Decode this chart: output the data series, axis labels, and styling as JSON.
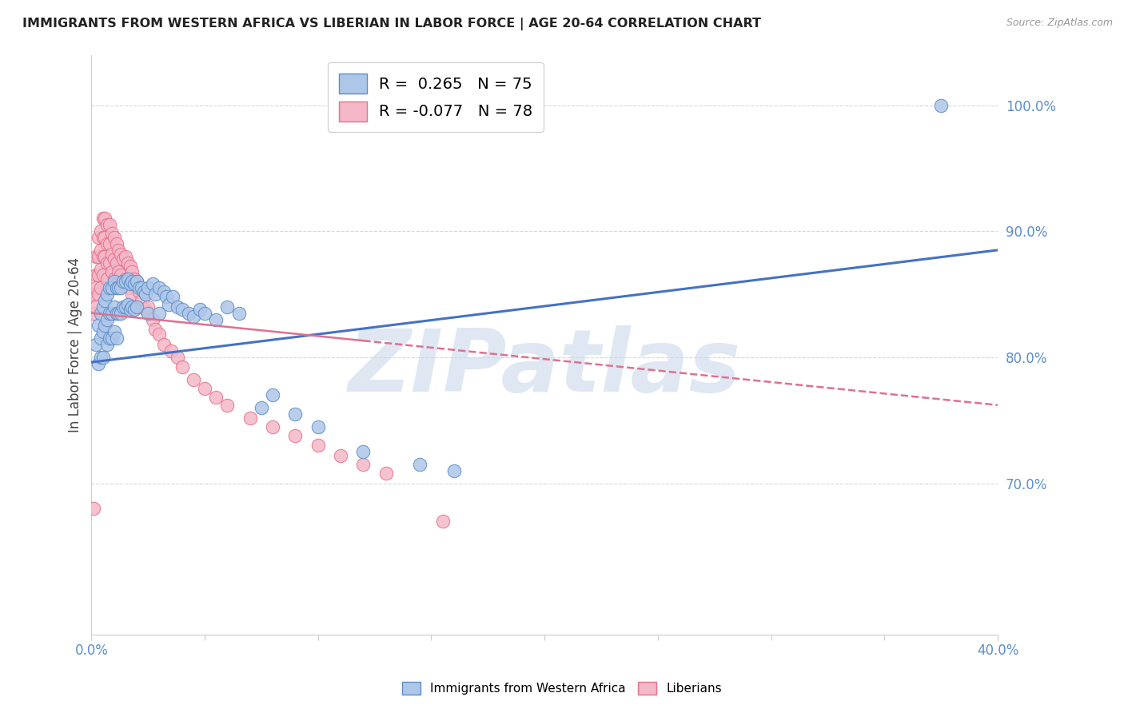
{
  "title": "IMMIGRANTS FROM WESTERN AFRICA VS LIBERIAN IN LABOR FORCE | AGE 20-64 CORRELATION CHART",
  "source": "Source: ZipAtlas.com",
  "ylabel": "In Labor Force | Age 20-64",
  "xlim": [
    0.0,
    0.4
  ],
  "ylim": [
    0.58,
    1.04
  ],
  "xtick_positions": [
    0.0,
    0.05,
    0.1,
    0.15,
    0.2,
    0.25,
    0.3,
    0.35,
    0.4
  ],
  "xtick_labels": [
    "0.0%",
    "",
    "",
    "",
    "",
    "",
    "",
    "",
    "40.0%"
  ],
  "ytick_positions": [
    0.7,
    0.8,
    0.9,
    1.0
  ],
  "ytick_labels": [
    "70.0%",
    "80.0%",
    "90.0%",
    "100.0%"
  ],
  "blue_color": "#aec6e8",
  "pink_color": "#f4b8c8",
  "blue_edge_color": "#5b8ec9",
  "pink_edge_color": "#e8708a",
  "blue_line_color": "#4472c4",
  "pink_line_color": "#e07090",
  "watermark": "ZIPatlas",
  "watermark_color": "#c8d8ea",
  "legend_blue": "R =  0.265   N = 75",
  "legend_pink": "R = -0.077   N = 78",
  "blue_trend_x0": 0.0,
  "blue_trend_y0": 0.796,
  "blue_trend_x1": 0.4,
  "blue_trend_y1": 0.885,
  "pink_trend_x0": 0.0,
  "pink_trend_y0": 0.835,
  "pink_trend_x1": 0.4,
  "pink_trend_y1": 0.762,
  "blue_scatter_x": [
    0.002,
    0.003,
    0.003,
    0.004,
    0.004,
    0.004,
    0.005,
    0.005,
    0.005,
    0.006,
    0.006,
    0.007,
    0.007,
    0.007,
    0.008,
    0.008,
    0.008,
    0.009,
    0.009,
    0.009,
    0.01,
    0.01,
    0.01,
    0.011,
    0.011,
    0.011,
    0.012,
    0.012,
    0.013,
    0.013,
    0.014,
    0.014,
    0.015,
    0.015,
    0.016,
    0.016,
    0.017,
    0.017,
    0.018,
    0.018,
    0.019,
    0.019,
    0.02,
    0.02,
    0.021,
    0.022,
    0.023,
    0.024,
    0.025,
    0.025,
    0.027,
    0.028,
    0.03,
    0.03,
    0.032,
    0.033,
    0.034,
    0.036,
    0.038,
    0.04,
    0.043,
    0.045,
    0.048,
    0.05,
    0.055,
    0.06,
    0.065,
    0.075,
    0.08,
    0.09,
    0.1,
    0.12,
    0.145,
    0.16,
    0.375
  ],
  "blue_scatter_y": [
    0.81,
    0.825,
    0.795,
    0.835,
    0.815,
    0.8,
    0.84,
    0.82,
    0.8,
    0.845,
    0.825,
    0.85,
    0.83,
    0.81,
    0.855,
    0.835,
    0.815,
    0.855,
    0.835,
    0.815,
    0.86,
    0.84,
    0.82,
    0.855,
    0.835,
    0.815,
    0.855,
    0.835,
    0.855,
    0.835,
    0.86,
    0.84,
    0.86,
    0.84,
    0.862,
    0.842,
    0.858,
    0.838,
    0.86,
    0.84,
    0.858,
    0.838,
    0.86,
    0.84,
    0.855,
    0.855,
    0.852,
    0.85,
    0.855,
    0.835,
    0.858,
    0.85,
    0.855,
    0.835,
    0.852,
    0.848,
    0.842,
    0.848,
    0.84,
    0.838,
    0.835,
    0.832,
    0.838,
    0.835,
    0.83,
    0.84,
    0.835,
    0.76,
    0.77,
    0.755,
    0.745,
    0.725,
    0.715,
    0.71,
    1.0
  ],
  "pink_scatter_x": [
    0.001,
    0.001,
    0.001,
    0.002,
    0.002,
    0.002,
    0.002,
    0.003,
    0.003,
    0.003,
    0.003,
    0.004,
    0.004,
    0.004,
    0.004,
    0.005,
    0.005,
    0.005,
    0.005,
    0.006,
    0.006,
    0.006,
    0.007,
    0.007,
    0.007,
    0.007,
    0.008,
    0.008,
    0.008,
    0.009,
    0.009,
    0.009,
    0.01,
    0.01,
    0.01,
    0.011,
    0.011,
    0.011,
    0.012,
    0.012,
    0.013,
    0.013,
    0.014,
    0.014,
    0.015,
    0.015,
    0.016,
    0.016,
    0.017,
    0.017,
    0.018,
    0.018,
    0.019,
    0.02,
    0.02,
    0.021,
    0.022,
    0.024,
    0.025,
    0.027,
    0.028,
    0.03,
    0.032,
    0.035,
    0.038,
    0.04,
    0.045,
    0.05,
    0.055,
    0.06,
    0.07,
    0.08,
    0.09,
    0.1,
    0.11,
    0.12,
    0.13,
    0.155
  ],
  "pink_scatter_y": [
    0.85,
    0.835,
    0.68,
    0.88,
    0.865,
    0.855,
    0.84,
    0.895,
    0.88,
    0.865,
    0.85,
    0.9,
    0.885,
    0.87,
    0.855,
    0.91,
    0.895,
    0.88,
    0.865,
    0.91,
    0.895,
    0.88,
    0.905,
    0.89,
    0.875,
    0.862,
    0.905,
    0.89,
    0.875,
    0.898,
    0.882,
    0.868,
    0.895,
    0.878,
    0.862,
    0.89,
    0.875,
    0.858,
    0.885,
    0.868,
    0.882,
    0.865,
    0.878,
    0.86,
    0.88,
    0.862,
    0.875,
    0.858,
    0.872,
    0.855,
    0.868,
    0.85,
    0.862,
    0.86,
    0.84,
    0.852,
    0.845,
    0.838,
    0.84,
    0.83,
    0.822,
    0.818,
    0.81,
    0.805,
    0.8,
    0.792,
    0.782,
    0.775,
    0.768,
    0.762,
    0.752,
    0.745,
    0.738,
    0.73,
    0.722,
    0.715,
    0.708,
    0.67
  ]
}
